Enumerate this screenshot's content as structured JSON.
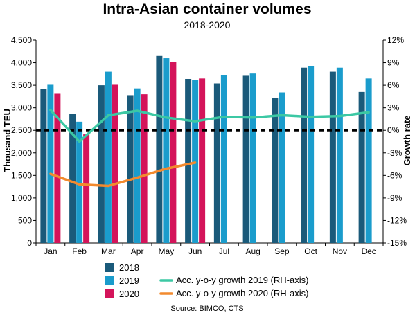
{
  "chart_data": {
    "type": "bar",
    "title": "Intra-Asian container volumes",
    "subtitle": "2018-2020",
    "source": "Source: BIMCO, CTS",
    "ylabel": "Thousand TEU",
    "y2label": "Growth rate",
    "ylim": [
      0,
      4500
    ],
    "y2lim": [
      -15,
      12
    ],
    "yticks": [
      "0",
      "500",
      "1,000",
      "1,500",
      "2,000",
      "2,500",
      "3,000",
      "3,500",
      "4,000",
      "4,500"
    ],
    "y2ticks": [
      "-15%",
      "-12%",
      "-9%",
      "-6%",
      "-3%",
      "0%",
      "3%",
      "6%",
      "9%",
      "12%"
    ],
    "categories": [
      "Jan",
      "Feb",
      "Mar",
      "Apr",
      "May",
      "Jun",
      "Jul",
      "Aug",
      "Sep",
      "Oct",
      "Nov",
      "Dec"
    ],
    "bar_series": [
      {
        "name": "2018",
        "color": "#1a5a7a",
        "values": [
          3420,
          2870,
          3500,
          3280,
          4150,
          3640,
          3540,
          3710,
          3220,
          3890,
          3800,
          3350
        ]
      },
      {
        "name": "2019",
        "color": "#1a9ccc",
        "values": [
          3510,
          2690,
          3800,
          3430,
          4100,
          3620,
          3730,
          3760,
          3340,
          3920,
          3890,
          3650
        ]
      },
      {
        "name": "2020",
        "color": "#d4145a",
        "values": [
          3310,
          2410,
          3510,
          3300,
          4020,
          3650,
          null,
          null,
          null,
          null,
          null,
          null
        ]
      }
    ],
    "line_series": [
      {
        "name": "Acc. y-o-y growth 2019 (RH-axis)",
        "color": "#3cc8a4",
        "values": [
          2.7,
          -1.5,
          2.0,
          2.6,
          1.7,
          1.2,
          1.8,
          1.7,
          2.0,
          1.8,
          1.9,
          2.4
        ]
      },
      {
        "name": "Acc. y-o-y growth 2020 (RH-axis)",
        "color": "#f28a2e",
        "values": [
          -5.8,
          -7.2,
          -7.4,
          -6.3,
          -5.1,
          -4.3,
          null,
          null,
          null,
          null,
          null,
          null
        ]
      }
    ],
    "reference_line": {
      "axis": "y2",
      "value": 0,
      "style": "dashed",
      "color": "#000000"
    },
    "legend_position": "bottom",
    "grid": false
  }
}
